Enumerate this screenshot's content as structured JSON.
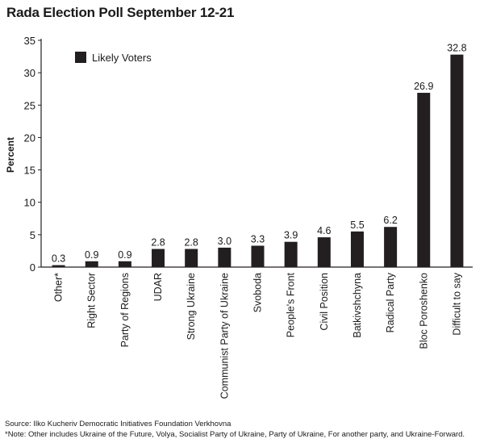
{
  "chart_data": {
    "type": "bar",
    "title": "Rada Election Poll September 12-21",
    "xlabel": "",
    "ylabel": "Percent",
    "ylim": [
      0,
      35
    ],
    "yticks": [
      0,
      5,
      10,
      15,
      20,
      25,
      30,
      35
    ],
    "grid": false,
    "legend_position": "top-left",
    "categories": [
      "Other*",
      "Right Sector",
      "Party of Regions",
      "UDAR",
      "Strong Ukraine",
      "Communist Party of Ukraine",
      "Svoboda",
      "People's Front",
      "Civil Position",
      "Batkivshchyna",
      "Radical Party",
      "Bloc Poroshenko",
      "Difficult to say"
    ],
    "series": [
      {
        "name": "Likely Voters",
        "color": "#231f20",
        "values": [
          0.3,
          0.9,
          0.9,
          2.8,
          2.8,
          3.0,
          3.3,
          3.9,
          4.6,
          5.5,
          6.2,
          26.9,
          32.8
        ],
        "labels": [
          "0.3",
          "0.9",
          "0.9",
          "2.8",
          "2.8",
          "3.0",
          "3.3",
          "3.9",
          "4.6",
          "5.5",
          "6.2",
          "26.9",
          "32.8"
        ]
      }
    ]
  },
  "footer": {
    "source": "Source: Ilko Kucheriv Democratic Initiatives Foundation Verkhovna",
    "note": "*Note: Other includes Ukraine of the Future, Volya, Socialist Party of Ukraine, Party of Ukraine, For another party, and  Ukraine-Forward."
  }
}
